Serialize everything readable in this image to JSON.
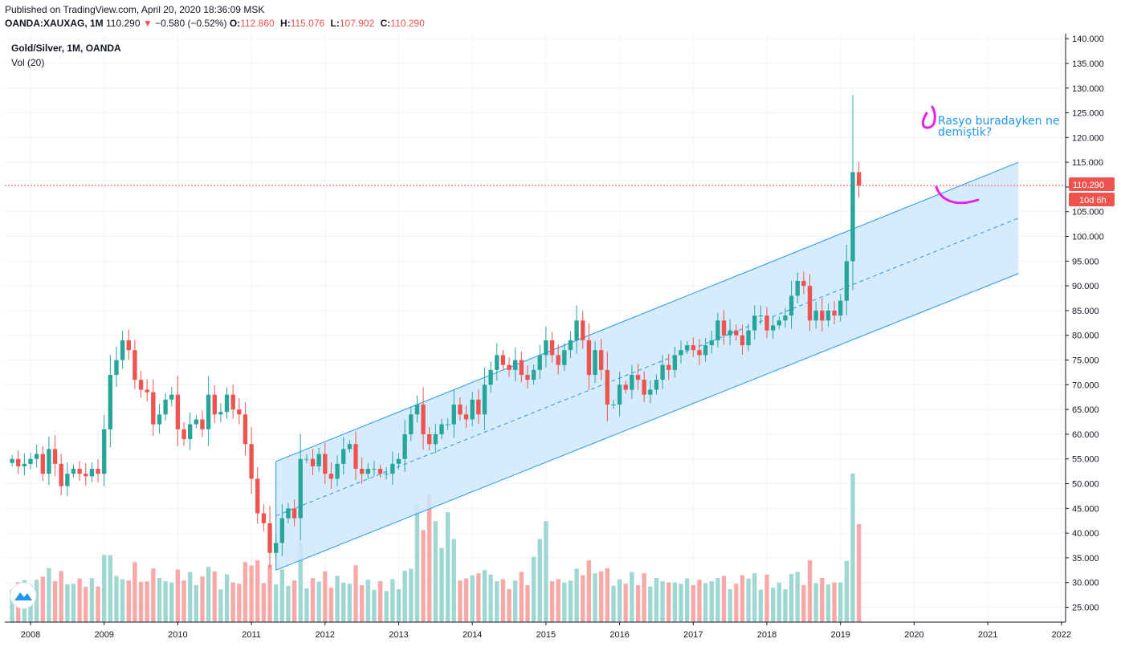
{
  "header": {
    "published": "Published on TradingView.com, April 20, 2020 18:36:09 MSK",
    "symbol": "OANDA:XAUXAG, 1M",
    "last": "110.290",
    "arrow": "▼",
    "change": "−0.580 (−0.52%)",
    "o_label": "O:",
    "o_val": "112.860",
    "h_label": "H:",
    "h_val": "115.076",
    "l_label": "L:",
    "l_val": "107.902",
    "c_label": "C:",
    "c_val": "110.290"
  },
  "legend": {
    "title": "Gold/Silver, 1M, OANDA",
    "volume": "Vol (20)"
  },
  "annotation": {
    "line1": "Rasyo buradayken ne",
    "line2": "demiştik?"
  },
  "price_tag": "110.290",
  "countdown_tag": "10d 6h",
  "colors": {
    "up": "#26a69a",
    "down": "#ef5350",
    "vol_up": "#9fd8d2",
    "vol_down": "#f7a8a7",
    "channel_line": "#2196f3",
    "channel_fill": "#cfe7fb",
    "annotation_mark": "#e91ee6",
    "grid": "#f0f3fa",
    "price_line": "#ef5350"
  },
  "chart_data": {
    "type": "candlestick",
    "title": "Gold/Silver, 1M, OANDA",
    "interval": "1M",
    "y_axis_labels": [
      "25.000",
      "30.000",
      "35.000",
      "40.000",
      "45.000",
      "50.000",
      "55.000",
      "60.000",
      "65.000",
      "70.000",
      "75.000",
      "80.000",
      "85.000",
      "90.000",
      "95.000",
      "100.000",
      "105.000",
      "110.000",
      "115.000",
      "120.000",
      "125.000",
      "130.000",
      "135.000",
      "140.000"
    ],
    "x_axis_labels": [
      "2008",
      "2009",
      "2010",
      "2011",
      "2012",
      "2013",
      "2014",
      "2015",
      "2016",
      "2017",
      "2018",
      "2019",
      "2020",
      "2021",
      "2022"
    ],
    "ylim": [
      22,
      141
    ],
    "x_start": "2007-10",
    "closes": [
      55,
      53.5,
      54,
      55,
      56,
      52,
      57,
      54,
      49.5,
      52,
      53,
      52,
      51.5,
      53,
      52,
      61,
      72,
      75,
      79,
      77,
      71,
      69,
      68.5,
      62,
      64,
      67,
      68,
      61,
      59,
      62,
      63,
      61,
      68,
      64,
      64.5,
      68,
      65,
      64,
      58,
      51,
      44,
      42,
      36,
      38,
      43,
      45,
      43,
      55,
      55,
      53.5,
      56,
      52,
      51,
      54,
      57,
      58,
      53,
      52,
      53,
      53,
      52,
      52,
      54,
      55,
      60,
      64,
      66,
      60,
      58,
      60,
      62,
      62,
      66,
      64,
      63,
      67,
      64,
      70,
      73,
      76,
      74,
      73,
      75,
      72,
      71,
      73,
      76,
      79,
      76,
      74,
      77,
      79,
      83,
      79,
      72,
      77,
      73,
      66,
      66,
      70,
      69,
      72,
      71,
      68,
      69,
      71,
      74,
      73,
      76,
      77,
      78,
      77,
      76,
      78,
      79,
      83,
      80,
      81,
      80,
      78,
      81,
      84,
      84,
      81,
      82,
      83,
      84,
      88,
      91,
      90,
      83,
      85,
      83,
      85,
      84,
      87,
      95,
      113,
      110.29
    ],
    "volume_axis": "Vol (20)",
    "channel": {
      "upper": [
        {
          "x": "2011-05",
          "y": 54.5
        },
        {
          "x": "2021-06",
          "y": 115
        }
      ],
      "middle": [
        {
          "x": "2011-05",
          "y": 43.5
        },
        {
          "x": "2021-06",
          "y": 103.7
        }
      ],
      "lower": [
        {
          "x": "2011-05",
          "y": 32.5
        },
        {
          "x": "2021-06",
          "y": 92.5
        }
      ]
    },
    "last_price": 110.29
  }
}
